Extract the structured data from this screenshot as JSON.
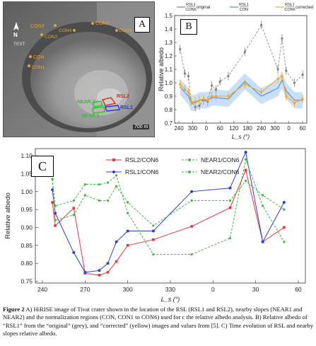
{
  "panel_a": {
    "label": "A",
    "north": "N",
    "scale": "700 m",
    "labels": [
      {
        "text": "CON3",
        "color": "#e2a33a"
      },
      {
        "text": "CON4",
        "color": "#e2a33a"
      },
      {
        "text": "CON5",
        "color": "#e2a33a"
      },
      {
        "text": "CON6",
        "color": "#e2a33a"
      },
      {
        "text": "CON2",
        "color": "#e2a33a"
      },
      {
        "text": "TEST",
        "color": "#dddddd"
      },
      {
        "text": "CON",
        "color": "#e2a33a"
      },
      {
        "text": "CON1",
        "color": "#e2a33a"
      },
      {
        "text": "RSL2",
        "color": "#e02020"
      },
      {
        "text": "NEAR 2",
        "color": "#22cc22"
      },
      {
        "text": "RSL1",
        "color": "#2233ee"
      },
      {
        "text": "NEAR 1",
        "color": "#22cc22"
      }
    ]
  },
  "panel_b": {
    "label": "B",
    "legend": [
      {
        "num": "RSL1",
        "den": "CON6",
        "name": "original",
        "color": "#808080"
      },
      {
        "num": "RSL1",
        "den": "CON",
        "name": "",
        "color": "#4a90e2"
      },
      {
        "num": "RSL1",
        "den": "CON6",
        "name": "corrected",
        "color": "#f5a623"
      }
    ]
  },
  "panel_c": {
    "label": "C"
  },
  "caption": {
    "bold": "Figure 2",
    "text": " A) HiRISE image of Tivat crater shown in the location of the RSL (RSL1 and RSL2), nearby slopes (NEAR1 and NEAR2) and the normalization regions (CON, CON1 to CON6) used for c the relative albedo analysis. B) Relative albedo of “RSL1” from the “original” (grey), and “corrected” (yellow) images and values from [5]. C) Time evolution of RSL and nearby slopes relative albedo."
  },
  "chart_data": [
    {
      "type": "line",
      "title": "",
      "xlabel": "L_s (°)",
      "ylabel": "Relative albedo",
      "xticks": [
        "240",
        "300",
        "0",
        "60",
        "120",
        "180",
        "240",
        "300",
        "0",
        "60"
      ],
      "yticks": [
        "0.7",
        "0.8",
        "0.9",
        "1.0",
        "1.1",
        "1.2",
        "1.3",
        "1.4",
        "1.5"
      ],
      "ylim": [
        0.7,
        1.5
      ],
      "series": [
        {
          "name": "RSL1/CON6 original",
          "color": "#808080",
          "x": [
            245,
            262,
            275,
            285,
            300,
            315,
            330,
            345,
            360,
            375,
            390,
            420,
            480,
            540,
            600,
            615,
            630,
            660,
            690
          ],
          "y": [
            1.25,
            1.07,
            1.05,
            0.86,
            0.82,
            0.83,
            0.87,
            0.86,
            0.98,
            0.95,
            1.01,
            1.05,
            1.23,
            1.43,
            1.1,
            1.33,
            1.09,
            1.0,
            1.06
          ]
        },
        {
          "name": "RSL1/CON",
          "color": "#4a90e2",
          "x": [
            245,
            262,
            275,
            285,
            300,
            315,
            330,
            345,
            360,
            375,
            420,
            480,
            540,
            600,
            615,
            630,
            660,
            690
          ],
          "y": [
            0.97,
            0.93,
            0.9,
            0.85,
            0.85,
            0.87,
            0.87,
            0.87,
            0.89,
            0.89,
            0.88,
            1.01,
            0.9,
            0.96,
            1.02,
            0.94,
            0.87,
            0.87
          ]
        },
        {
          "name": "RSL1/CON6 corrected",
          "color": "#f5a623",
          "x": [
            245,
            262,
            275,
            285,
            300,
            315,
            330,
            345,
            360,
            375,
            420,
            480,
            540,
            600,
            615,
            630,
            660,
            690
          ],
          "y": [
            0.99,
            0.95,
            0.93,
            0.86,
            0.86,
            0.87,
            0.88,
            0.87,
            0.9,
            0.9,
            0.9,
            0.99,
            0.93,
            1.03,
            1.05,
            0.9,
            0.85,
            0.88
          ]
        }
      ]
    },
    {
      "type": "line",
      "title": "",
      "xlabel": "L_s (°)",
      "ylabel": "Relative albedo",
      "xticks": [
        "240",
        "270",
        "300",
        "330",
        "0",
        "30",
        "60"
      ],
      "xtick_values": [
        240,
        270,
        300,
        330,
        360,
        390,
        420
      ],
      "yticks": [
        "0.75",
        "0.80",
        "0.85",
        "0.90",
        "0.95",
        "1.00",
        "1.05",
        "1.10"
      ],
      "ylim": [
        0.745,
        1.12
      ],
      "note": "x axis spans two years; x values below are cumulative positions read against the tick labels (0 = 360)",
      "series": [
        {
          "name": "RSL2/CON6",
          "color": "#e8343a",
          "dash": false,
          "x": [
            246,
            248,
            262,
            265,
            272,
            276,
            281,
            288,
            296,
            310,
            322
          ],
          "y": [
            0.97,
            0.905,
            0.954,
            0.772,
            0.767,
            0.775,
            0.805,
            0.85,
            0.866,
            0.903,
            0.955
          ]
        },
        {
          "name": "RSL1/CON6",
          "color": "#2e3fd8",
          "dash": false,
          "x": [
            246,
            248,
            262,
            265,
            272,
            276,
            281,
            288,
            296,
            310,
            322
          ],
          "y": [
            1.005,
            0.94,
            0.83,
            0.775,
            0.78,
            0.8,
            0.86,
            0.89,
            0.89,
            1.0,
            1.01
          ]
        },
        {
          "name": "NEAR1/CON6",
          "color": "#3cb83c",
          "dash": true,
          "x": [
            246,
            248,
            262,
            265,
            272,
            276,
            281,
            288,
            296,
            310,
            322
          ],
          "y": [
            1.035,
            0.92,
            0.935,
            0.99,
            0.975,
            0.975,
            1.015,
            0.97,
            0.905,
            0.975,
            0.975
          ]
        },
        {
          "name": "NEAR2/CON6",
          "color": "#3cb83c",
          "dash": true,
          "x": [
            246,
            248,
            262,
            265,
            272,
            276,
            281,
            288,
            296,
            310,
            322
          ],
          "y": [
            1.035,
            0.96,
            0.975,
            1.02,
            1.02,
            1.025,
            1.045,
            0.94,
            0.825,
            0.825,
            0.87
          ]
        }
      ]
    }
  ]
}
